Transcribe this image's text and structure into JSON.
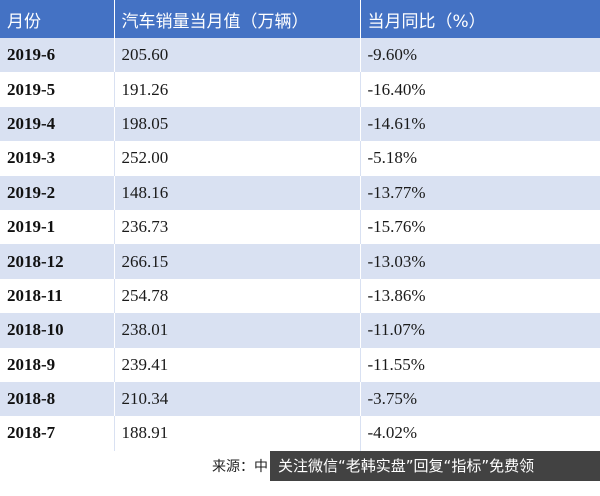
{
  "table": {
    "headers": [
      "月份",
      "汽车销量当月值（万辆）",
      "当月同比（%）"
    ],
    "rows": [
      {
        "month": "2019-6",
        "sales": "205.60",
        "yoy": "-9.60%"
      },
      {
        "month": "2019-5",
        "sales": "191.26",
        "yoy": "-16.40%"
      },
      {
        "month": "2019-4",
        "sales": "198.05",
        "yoy": "-14.61%"
      },
      {
        "month": "2019-3",
        "sales": "252.00",
        "yoy": "-5.18%"
      },
      {
        "month": "2019-2",
        "sales": "148.16",
        "yoy": "-13.77%"
      },
      {
        "month": "2019-1",
        "sales": "236.73",
        "yoy": "-15.76%"
      },
      {
        "month": "2018-12",
        "sales": "266.15",
        "yoy": "-13.03%"
      },
      {
        "month": "2018-11",
        "sales": "254.78",
        "yoy": "-13.86%"
      },
      {
        "month": "2018-10",
        "sales": "238.01",
        "yoy": "-11.07%"
      },
      {
        "month": "2018-9",
        "sales": "239.41",
        "yoy": "-11.55%"
      },
      {
        "month": "2018-8",
        "sales": "210.34",
        "yoy": "-3.75%"
      },
      {
        "month": "2018-7",
        "sales": "188.91",
        "yoy": "-4.02%"
      }
    ]
  },
  "footer": {
    "source_label": "来源：中",
    "watermark_text": "关注微信“老韩实盘”回复“指标”免费领"
  },
  "colors": {
    "header_bg": "#4472c4",
    "stripe_bg": "#d9e1f2"
  }
}
